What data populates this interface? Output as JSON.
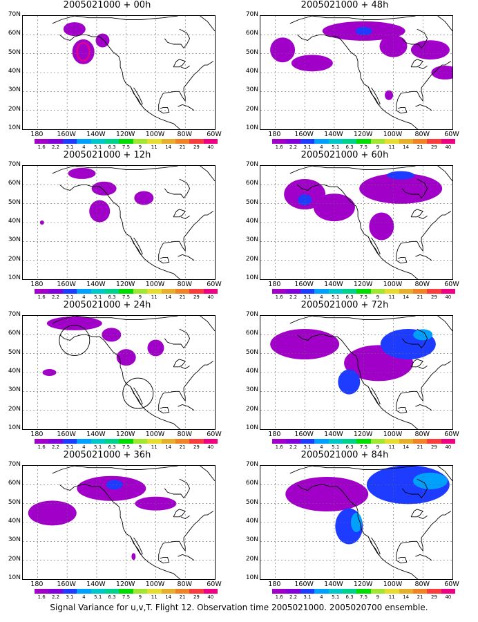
{
  "panels": [
    {
      "title": "2005021000 + 00h"
    },
    {
      "title": "2005021000 + 48h"
    },
    {
      "title": "2005021000 + 12h"
    },
    {
      "title": "2005021000 + 60h"
    },
    {
      "title": "2005021000 + 24h"
    },
    {
      "title": "2005021000 + 72h"
    },
    {
      "title": "2005021000 + 36h"
    },
    {
      "title": "2005021000 + 84h"
    }
  ],
  "lat_labels": [
    "70N",
    "60N",
    "50N",
    "40N",
    "30N",
    "20N",
    "10N"
  ],
  "lon_labels": [
    "180",
    "160W",
    "140W",
    "120W",
    "100W",
    "80W",
    "60W"
  ],
  "colorbar": {
    "levels": [
      "1.6",
      "2.2",
      "3.1",
      "4",
      "5.1",
      "6.3",
      "7.5",
      "9",
      "11",
      "14",
      "21",
      "29",
      "40"
    ],
    "colors": [
      "#a000c8",
      "#8200dc",
      "#1e3cff",
      "#00a0ff",
      "#00c8c8",
      "#00d28c",
      "#00dc00",
      "#a0e632",
      "#e6dc32",
      "#e6af2d",
      "#f08228",
      "#fa3c3c",
      "#f00082"
    ]
  },
  "footer": "Signal Variance for u,v,T. Flight 12. Observation time 2005021000. 2005020700 ensemble."
}
